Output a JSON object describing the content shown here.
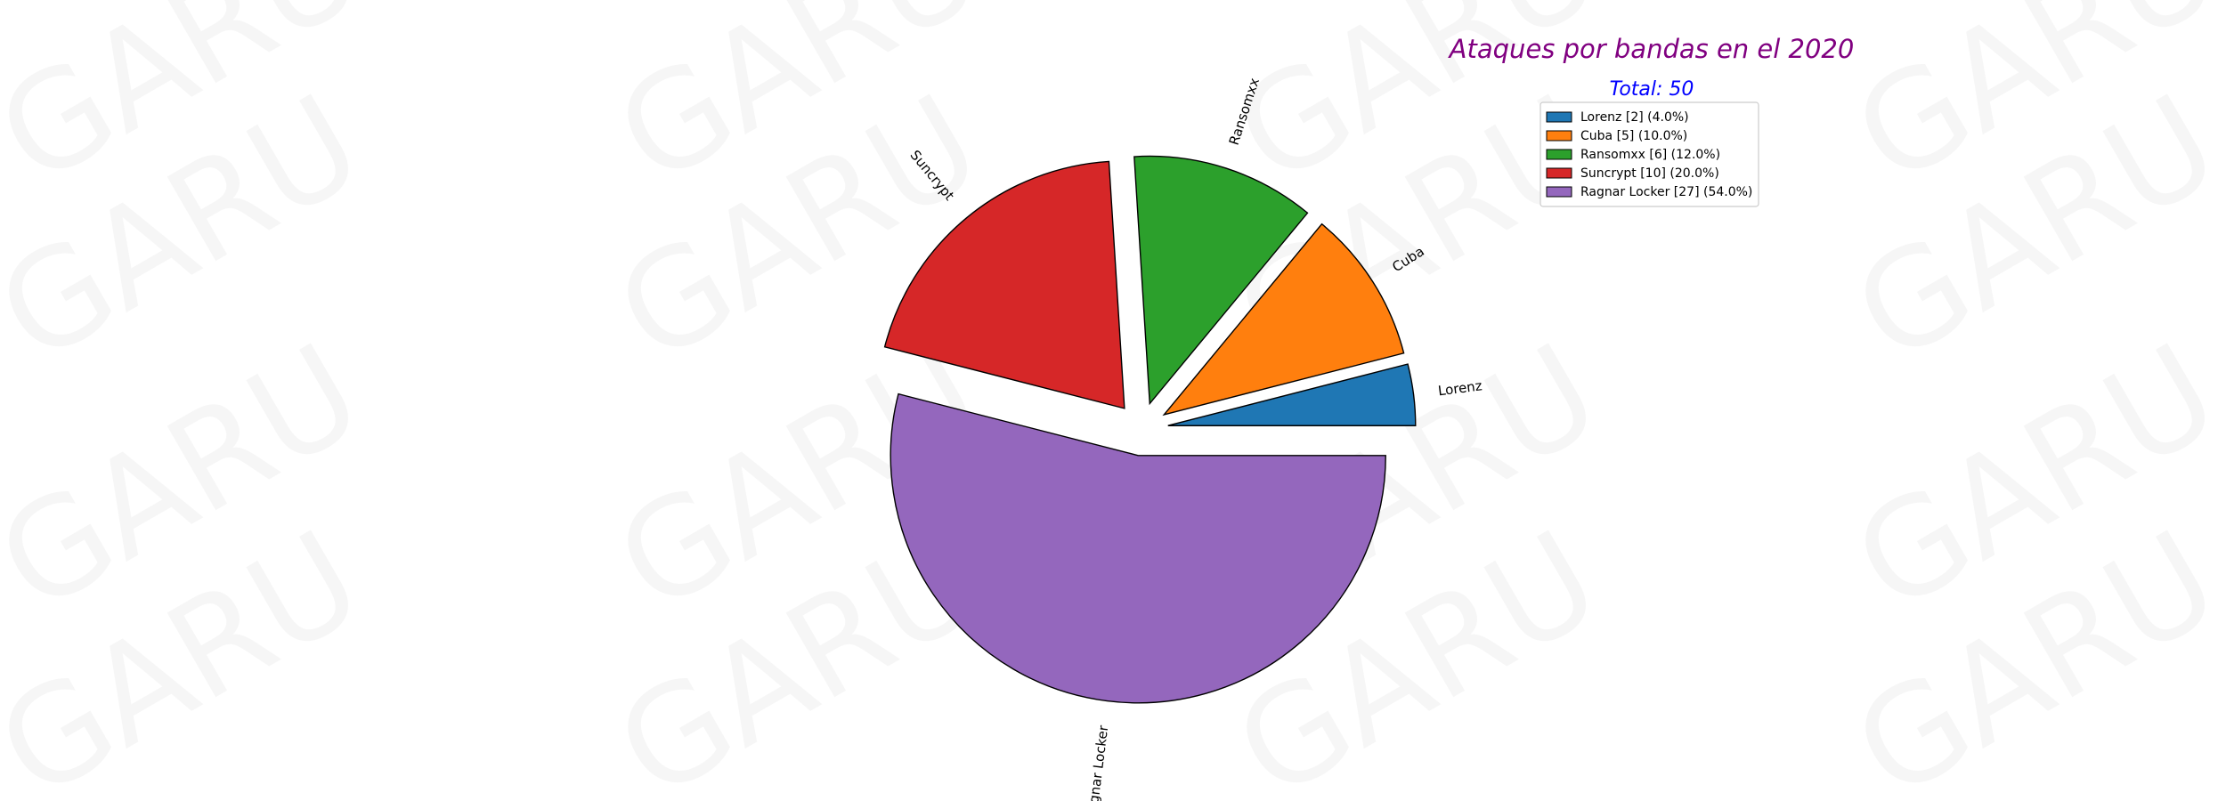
{
  "watermark": {
    "text": "GARU"
  },
  "chart_data": {
    "type": "pie",
    "title": "Ataques por bandas en el 2020",
    "subtitle": "Total: 50",
    "title_color": "#800080",
    "subtitle_color": "#0000ff",
    "legend_position": "top-right",
    "slices": [
      {
        "label": "Lorenz",
        "value": 2,
        "percent": 4.0,
        "color": "#1f77b4",
        "legend": "Lorenz [2] (4.0%)"
      },
      {
        "label": "Cuba",
        "value": 5,
        "percent": 10.0,
        "color": "#ff7f0e",
        "legend": "Cuba [5] (10.0%)"
      },
      {
        "label": "Ransomxx",
        "value": 6,
        "percent": 12.0,
        "color": "#2ca02c",
        "legend": "Ransomxx [6] (12.0%)"
      },
      {
        "label": "Suncrypt",
        "value": 10,
        "percent": 20.0,
        "color": "#d62728",
        "legend": "Suncrypt [10] (20.0%)"
      },
      {
        "label": "Ragnar Locker",
        "value": 27,
        "percent": 54.0,
        "color": "#9467bd",
        "legend": "Ragnar Locker [27] (54.0%)"
      }
    ]
  }
}
